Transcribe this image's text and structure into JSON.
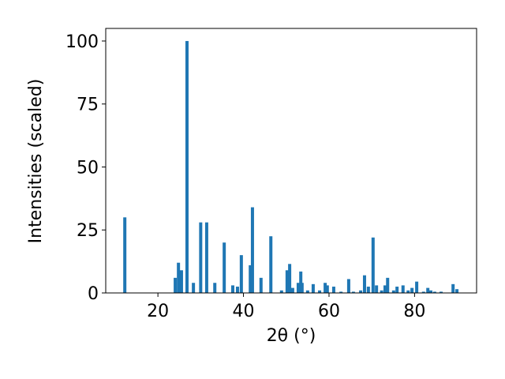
{
  "chart_data": {
    "type": "bar",
    "xlabel": "2θ (°)",
    "ylabel": "Intensities (scaled)",
    "color": "#1f77b4",
    "x": [
      12.26,
      24.05,
      24.8,
      25.5,
      26.8,
      28.3,
      30.0,
      31.4,
      33.3,
      35.5,
      37.5,
      38.6,
      39.5,
      41.6,
      42.1,
      44.1,
      46.4,
      48.9,
      50.2,
      50.8,
      51.5,
      52.8,
      53.4,
      53.7,
      55.0,
      56.3,
      57.8,
      59.1,
      59.6,
      61.1,
      62.8,
      64.6,
      65.7,
      67.4,
      68.3,
      69.2,
      70.3,
      71.1,
      72.3,
      73.1,
      73.7,
      75.1,
      75.9,
      77.3,
      78.5,
      79.4,
      80.5,
      82.1,
      83.1,
      83.8,
      84.7,
      86.2,
      89.0,
      89.9
    ],
    "values": [
      30,
      6,
      12,
      9,
      100,
      4,
      28,
      28,
      4,
      20,
      3,
      2.5,
      15,
      11,
      34,
      6,
      22.5,
      1,
      9,
      11.5,
      2,
      4,
      8.5,
      4,
      1,
      3.5,
      1,
      4,
      3,
      2.5,
      0.5,
      5.5,
      0.5,
      1,
      7,
      2.5,
      22,
      3,
      1,
      3,
      6,
      1,
      2.5,
      3,
      1,
      2,
      4.5,
      0.5,
      2,
      1,
      0.5,
      0.5,
      3.5,
      1.5
    ],
    "xlim": [
      7.8,
      94.5
    ],
    "ylim": [
      0,
      105
    ],
    "xticks": [
      20,
      40,
      60,
      80
    ],
    "yticks": [
      0,
      25,
      50,
      75,
      100
    ],
    "grid": false
  }
}
